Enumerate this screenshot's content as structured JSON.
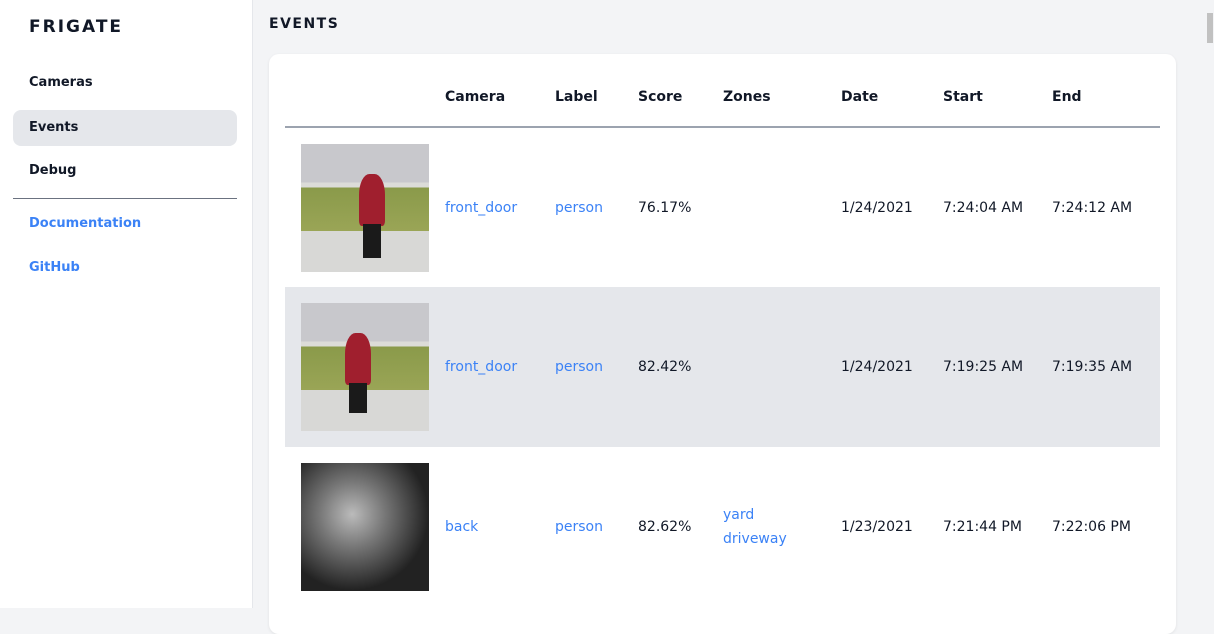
{
  "sidebar": {
    "logo": "FRIGATE",
    "items": [
      {
        "label": "Cameras"
      },
      {
        "label": "Events",
        "active": true
      },
      {
        "label": "Debug"
      }
    ],
    "links": [
      {
        "label": "Documentation"
      },
      {
        "label": "GitHub"
      }
    ]
  },
  "main": {
    "title": "EVENTS",
    "columns": [
      "",
      "Camera",
      "Label",
      "Score",
      "Zones",
      "Date",
      "Start",
      "End"
    ],
    "rows": [
      {
        "camera": "front_door",
        "label": "person",
        "score": "76.17%",
        "zones": [
          "",
          ""
        ],
        "date": "1/24/2021",
        "start": "7:24:04 AM",
        "end": "7:24:12 AM"
      },
      {
        "camera": "front_door",
        "label": "person",
        "score": "82.42%",
        "zones": [
          "",
          ""
        ],
        "date": "1/24/2021",
        "start": "7:19:25 AM",
        "end": "7:19:35 AM"
      },
      {
        "camera": "back",
        "label": "person",
        "score": "82.62%",
        "zones": [
          "yard",
          "driveway"
        ],
        "date": "1/23/2021",
        "start": "7:21:44 PM",
        "end": "7:22:06 PM"
      }
    ]
  },
  "colors": {
    "accent": "#3b82f6",
    "active_bg": "#e5e7eb"
  }
}
